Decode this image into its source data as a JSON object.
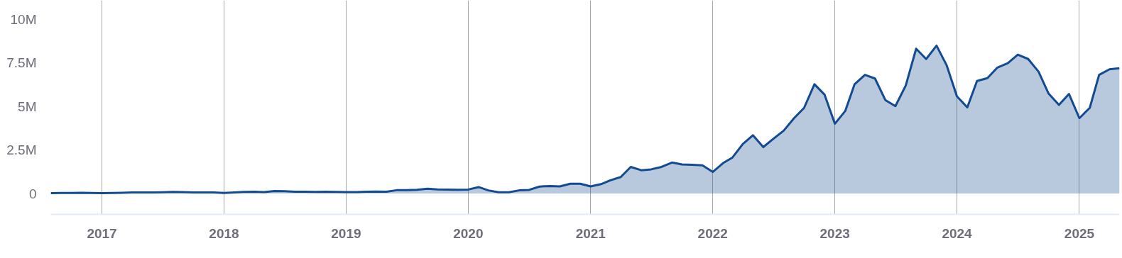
{
  "chart_data": {
    "type": "area",
    "x": [
      "2016-08",
      "2016-09",
      "2016-10",
      "2016-11",
      "2016-12",
      "2017-01",
      "2017-02",
      "2017-03",
      "2017-04",
      "2017-05",
      "2017-06",
      "2017-07",
      "2017-08",
      "2017-09",
      "2017-10",
      "2017-11",
      "2017-12",
      "2018-01",
      "2018-02",
      "2018-03",
      "2018-04",
      "2018-05",
      "2018-06",
      "2018-07",
      "2018-08",
      "2018-09",
      "2018-10",
      "2018-11",
      "2018-12",
      "2019-01",
      "2019-02",
      "2019-03",
      "2019-04",
      "2019-05",
      "2019-06",
      "2019-07",
      "2019-08",
      "2019-09",
      "2019-10",
      "2019-11",
      "2019-12",
      "2020-01",
      "2020-02",
      "2020-03",
      "2020-04",
      "2020-05",
      "2020-06",
      "2020-07",
      "2020-08",
      "2020-09",
      "2020-10",
      "2020-11",
      "2020-12",
      "2021-01",
      "2021-02",
      "2021-03",
      "2021-04",
      "2021-05",
      "2021-06",
      "2021-07",
      "2021-08",
      "2021-09",
      "2021-10",
      "2021-11",
      "2021-12",
      "2022-01",
      "2022-02",
      "2022-03",
      "2022-04",
      "2022-05",
      "2022-06",
      "2022-07",
      "2022-08",
      "2022-09",
      "2022-10",
      "2022-11",
      "2022-12",
      "2023-01",
      "2023-02",
      "2023-03",
      "2023-04",
      "2023-05",
      "2023-06",
      "2023-07",
      "2023-08",
      "2023-09",
      "2023-10",
      "2023-11",
      "2023-12",
      "2024-01",
      "2024-02",
      "2024-03",
      "2024-04",
      "2024-05",
      "2024-06",
      "2024-07",
      "2024-08",
      "2024-09",
      "2024-10",
      "2024-11",
      "2024-12",
      "2025-01",
      "2025-02",
      "2025-03",
      "2025-04",
      "2025-05"
    ],
    "series": [
      {
        "color": "#134b92",
        "values": [
          0.02,
          0.03,
          0.03,
          0.04,
          0.03,
          0.02,
          0.03,
          0.04,
          0.06,
          0.06,
          0.06,
          0.07,
          0.09,
          0.08,
          0.06,
          0.06,
          0.06,
          0.03,
          0.06,
          0.09,
          0.1,
          0.08,
          0.14,
          0.13,
          0.1,
          0.1,
          0.09,
          0.1,
          0.09,
          0.08,
          0.08,
          0.1,
          0.11,
          0.1,
          0.19,
          0.19,
          0.22,
          0.28,
          0.24,
          0.23,
          0.22,
          0.23,
          0.37,
          0.18,
          0.07,
          0.07,
          0.18,
          0.21,
          0.4,
          0.43,
          0.41,
          0.56,
          0.56,
          0.41,
          0.54,
          0.76,
          0.95,
          1.53,
          1.34,
          1.39,
          1.53,
          1.78,
          1.67,
          1.65,
          1.62,
          1.24,
          1.75,
          2.07,
          2.85,
          3.35,
          2.67,
          3.14,
          3.61,
          4.33,
          4.92,
          6.28,
          5.69,
          4.01,
          4.74,
          6.28,
          6.82,
          6.61,
          5.37,
          5.02,
          6.21,
          8.32,
          7.73,
          8.5,
          7.38,
          5.58,
          4.95,
          6.47,
          6.63,
          7.24,
          7.49,
          7.98,
          7.73,
          7.0,
          5.74,
          5.09,
          5.72,
          4.33,
          4.92,
          6.82,
          7.14,
          7.2
        ]
      }
    ],
    "xlim": [
      "2016-08",
      "2025-05"
    ],
    "xticks": [
      {
        "value": "2017-01",
        "label": "2017"
      },
      {
        "value": "2018-01",
        "label": "2018"
      },
      {
        "value": "2019-01",
        "label": "2019"
      },
      {
        "value": "2020-01",
        "label": "2020"
      },
      {
        "value": "2021-01",
        "label": "2021"
      },
      {
        "value": "2022-01",
        "label": "2022"
      },
      {
        "value": "2023-01",
        "label": "2023"
      },
      {
        "value": "2024-01",
        "label": "2024"
      },
      {
        "value": "2025-01",
        "label": "2025"
      }
    ],
    "ylim": [
      -1.2,
      11.1
    ],
    "yticks": [
      {
        "value": 0,
        "label": "0"
      },
      {
        "value": 2.5,
        "label": "2.5M"
      },
      {
        "value": 5,
        "label": "5M"
      },
      {
        "value": 7.5,
        "label": "7.5M"
      },
      {
        "value": 10,
        "label": "10M"
      }
    ],
    "grid": "x"
  }
}
